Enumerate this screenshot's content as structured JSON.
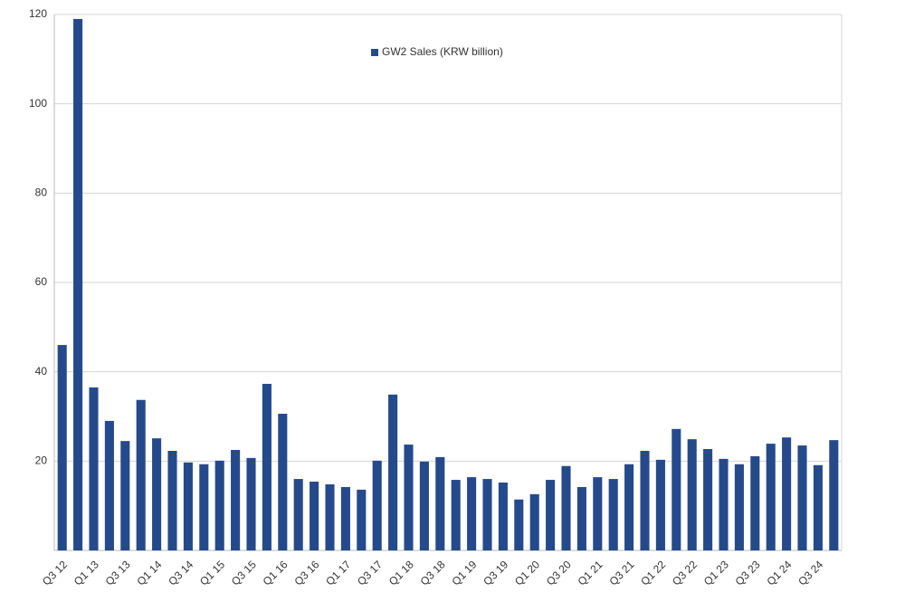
{
  "chart_data": {
    "type": "bar",
    "categories": [
      "Q3 12",
      null,
      "Q1 13",
      null,
      "Q3 13",
      null,
      "Q1 14",
      null,
      "Q3 14",
      null,
      "Q1 15",
      null,
      "Q3 15",
      null,
      "Q1 16",
      null,
      "Q3 16",
      null,
      "Q1 17",
      null,
      "Q3 17",
      null,
      "Q1 18",
      null,
      "Q3 18",
      null,
      "Q1 19",
      null,
      "Q3 19",
      null,
      "Q1 20",
      null,
      "Q3 20",
      null,
      "Q1 21",
      null,
      "Q3 21",
      null,
      "Q1 22",
      null,
      "Q3 22",
      null,
      "Q1 23",
      null,
      "Q3 23",
      null,
      "Q1 24",
      null,
      "Q3 24",
      null
    ],
    "series": [
      {
        "name": "GW2 Sales (KRW billion)",
        "color": "#254a8c",
        "values": [
          46,
          119,
          36.5,
          29,
          24.5,
          33.7,
          25.1,
          22.3,
          19.7,
          19.3,
          20.1,
          22.5,
          20.7,
          37.3,
          30.6,
          16,
          15.4,
          14.8,
          14.2,
          13.6,
          20.1,
          34.9,
          23.7,
          19.9,
          20.9,
          15.8,
          16.4,
          16,
          15.2,
          11.4,
          12.6,
          15.8,
          18.9,
          14.2,
          16.4,
          16,
          19.3,
          22.3,
          20.3,
          27.2,
          24.9,
          22.7,
          20.5,
          19.3,
          21.1,
          23.9,
          25.3,
          23.5,
          19.1,
          24.7
        ]
      }
    ],
    "ylim": [
      0,
      120
    ],
    "yticks": [
      20,
      40,
      60,
      80,
      100,
      120
    ],
    "grid": true,
    "legend": "top"
  }
}
